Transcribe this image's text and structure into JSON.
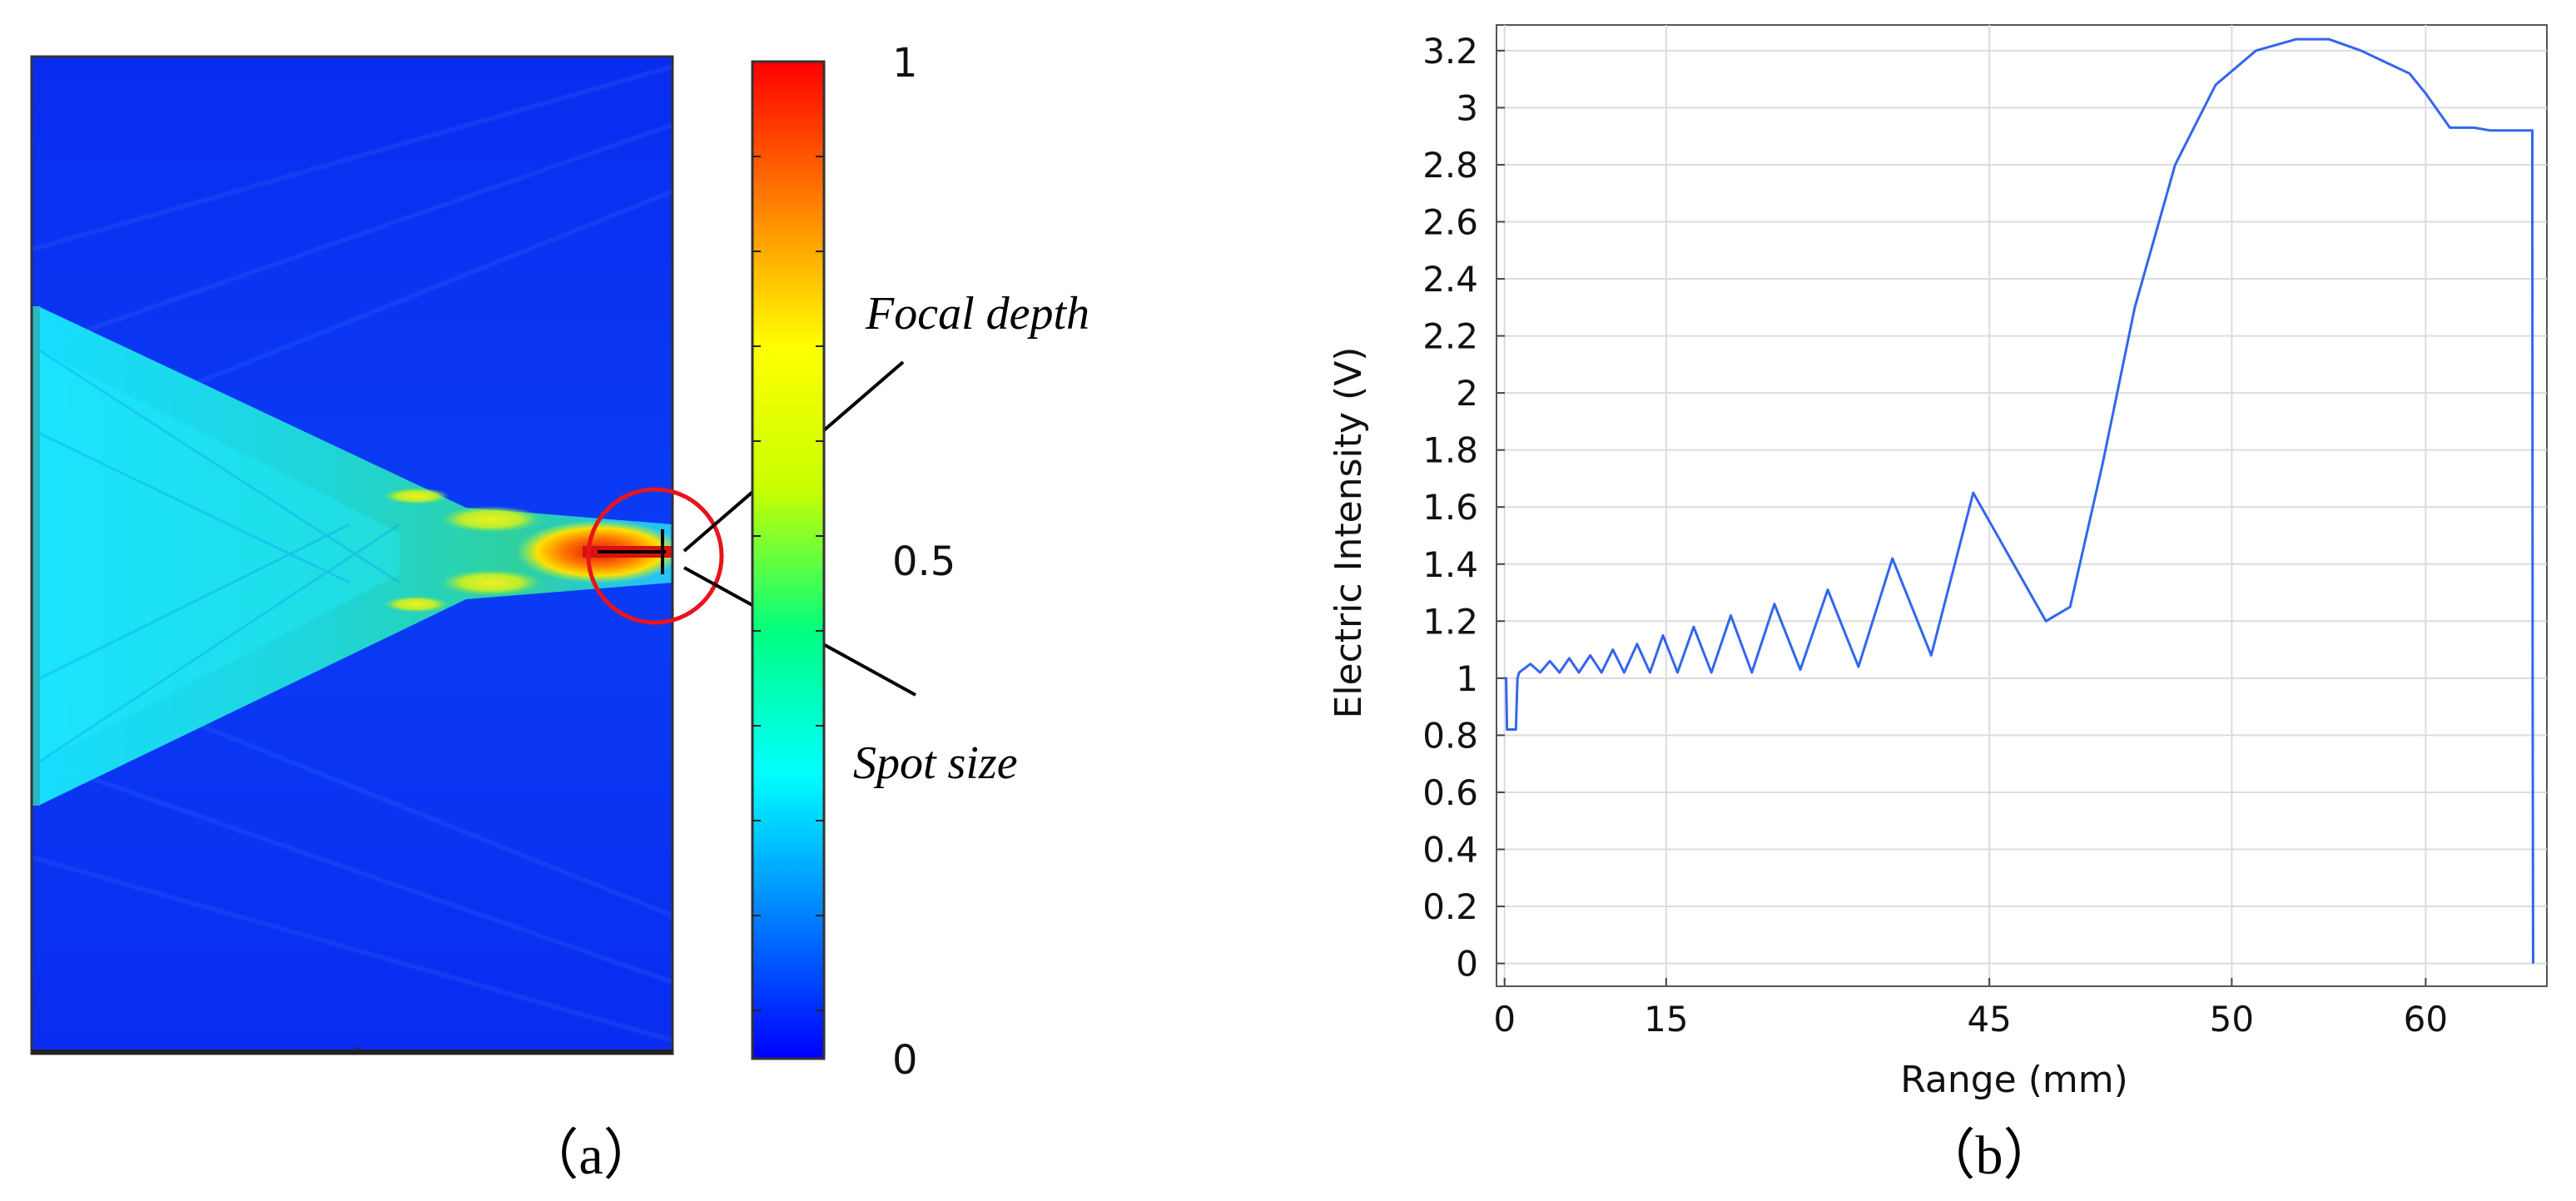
{
  "panel_a": {
    "caption": "（a）",
    "colorbar": {
      "ticks": [
        {
          "value": 1,
          "label": "1"
        },
        {
          "value": 0.5,
          "label": "0.5"
        },
        {
          "value": 0,
          "label": "0"
        }
      ],
      "colors": [
        "#0000ff",
        "#0080ff",
        "#00ffff",
        "#00ff80",
        "#c8ff00",
        "#ffff00",
        "#ff8000",
        "#ff0000"
      ]
    },
    "annotations": {
      "focal_depth": "Focal depth",
      "spot_size": "Spot size"
    },
    "marker_color": "#e8141c"
  },
  "panel_b": {
    "caption": "（b）",
    "line_color": "#3366ee"
  },
  "chart_data": {
    "type": "line",
    "title": "",
    "xlabel": "Range (mm)",
    "ylabel": "Electric Intensity (V)",
    "xlim": [
      -0.5,
      64.5
    ],
    "ylim": [
      -0.08,
      3.29
    ],
    "x_ticks": [
      {
        "pos": 0,
        "label": "0"
      },
      {
        "pos": 10,
        "label": "15"
      },
      {
        "pos": 30,
        "label": "45"
      },
      {
        "pos": 45,
        "label": "50"
      },
      {
        "pos": 57,
        "label": "60"
      }
    ],
    "y_ticks": [
      0,
      0.2,
      0.4,
      0.6,
      0.8,
      1,
      1.2,
      1.4,
      1.6,
      1.8,
      2,
      2.2,
      2.4,
      2.6,
      2.8,
      3,
      3.2
    ],
    "y_tick_labels": [
      "0",
      "0.2",
      "0.4",
      "0.6",
      "0.8",
      "1",
      "1.2",
      "1.4",
      "1.6",
      "1.8",
      "2",
      "2.2",
      "2.4",
      "2.6",
      "2.8",
      "3",
      "3.2"
    ],
    "grid": true,
    "series": [
      {
        "name": "Electric Intensity",
        "x": [
          0,
          0.1,
          0.15,
          0.7,
          0.8,
          0.9,
          1.6,
          2.2,
          2.8,
          3.4,
          4.0,
          4.6,
          5.3,
          6.0,
          6.7,
          7.4,
          8.2,
          9.0,
          9.8,
          10.7,
          11.7,
          12.8,
          14.0,
          15.3,
          16.7,
          18.3,
          20.0,
          21.9,
          24.0,
          26.4,
          29.0,
          31.5,
          33.5,
          35.0,
          37.0,
          39.0,
          41.5,
          44.0,
          46.5,
          49.0,
          51.0,
          53.0,
          54.5,
          56.0,
          57.0,
          58.5,
          60.0,
          61.0,
          63.0,
          63.6,
          63.62,
          63.65
        ],
        "y": [
          1.0,
          1.0,
          0.82,
          0.82,
          1.0,
          1.02,
          1.05,
          1.02,
          1.06,
          1.02,
          1.07,
          1.02,
          1.08,
          1.02,
          1.1,
          1.02,
          1.12,
          1.02,
          1.15,
          1.02,
          1.18,
          1.02,
          1.22,
          1.02,
          1.26,
          1.03,
          1.31,
          1.04,
          1.42,
          1.08,
          1.65,
          1.4,
          1.2,
          1.25,
          1.75,
          2.3,
          2.8,
          3.08,
          3.2,
          3.24,
          3.24,
          3.2,
          3.16,
          3.12,
          3.05,
          2.93,
          2.93,
          2.92,
          2.92,
          2.92,
          1.0,
          0.0
        ]
      }
    ]
  }
}
